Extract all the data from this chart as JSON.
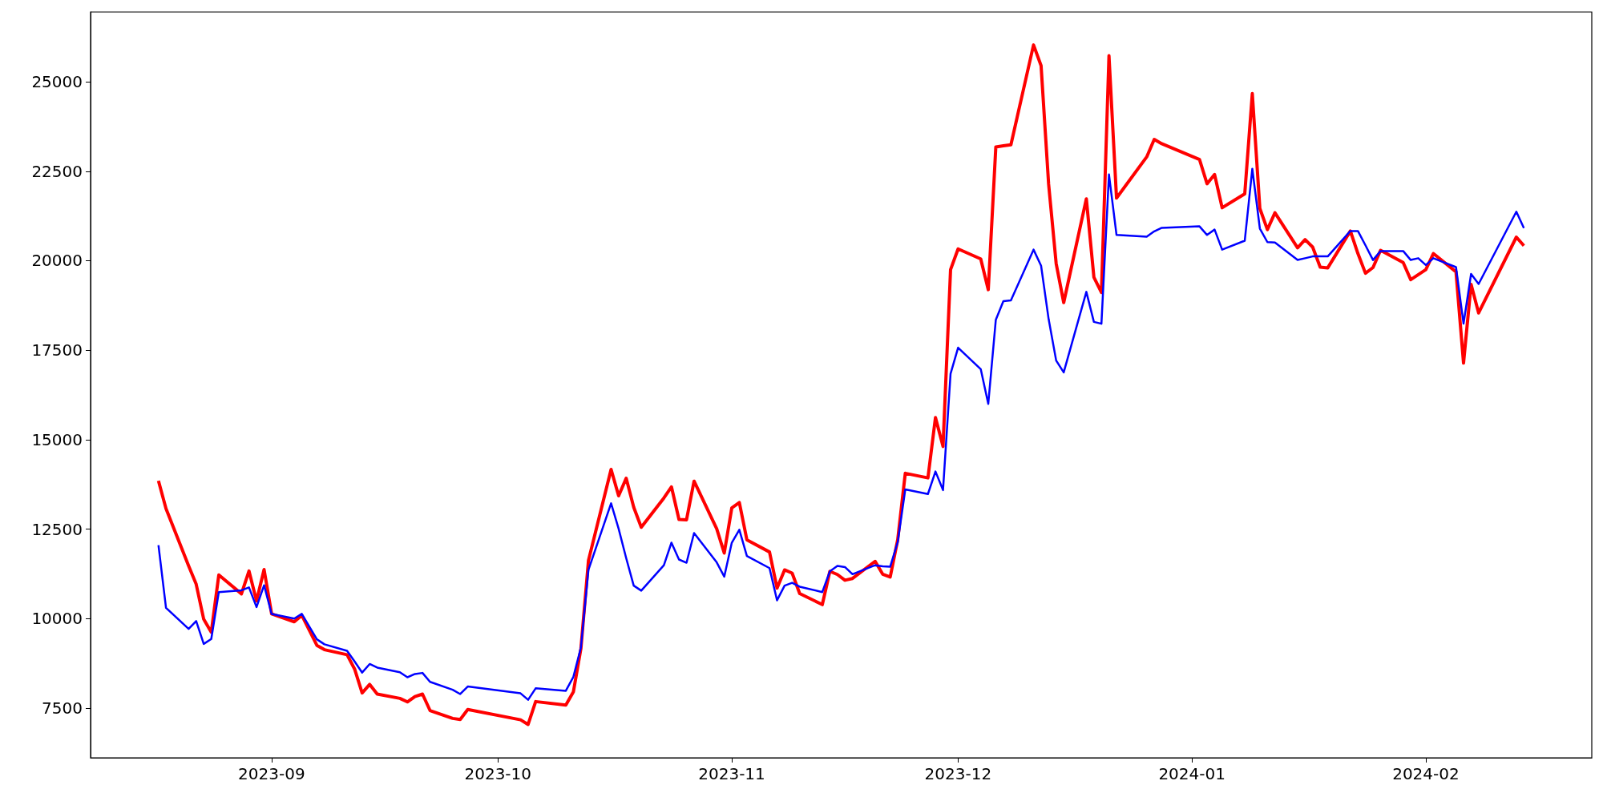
{
  "chart_data": {
    "type": "line",
    "x": [
      "2023-08-17",
      "2023-08-18",
      "2023-08-21",
      "2023-08-22",
      "2023-08-23",
      "2023-08-24",
      "2023-08-25",
      "2023-08-28",
      "2023-08-29",
      "2023-08-30",
      "2023-08-31",
      "2023-09-01",
      "2023-09-04",
      "2023-09-05",
      "2023-09-07",
      "2023-09-08",
      "2023-09-11",
      "2023-09-12",
      "2023-09-13",
      "2023-09-14",
      "2023-09-15",
      "2023-09-18",
      "2023-09-19",
      "2023-09-20",
      "2023-09-21",
      "2023-09-22",
      "2023-09-25",
      "2023-09-26",
      "2023-09-27",
      "2023-10-04",
      "2023-10-05",
      "2023-10-06",
      "2023-10-10",
      "2023-10-11",
      "2023-10-12",
      "2023-10-13",
      "2023-10-16",
      "2023-10-17",
      "2023-10-18",
      "2023-10-19",
      "2023-10-20",
      "2023-10-23",
      "2023-10-24",
      "2023-10-25",
      "2023-10-26",
      "2023-10-27",
      "2023-10-30",
      "2023-10-31",
      "2023-11-01",
      "2023-11-02",
      "2023-11-03",
      "2023-11-06",
      "2023-11-07",
      "2023-11-08",
      "2023-11-09",
      "2023-11-10",
      "2023-11-13",
      "2023-11-14",
      "2023-11-15",
      "2023-11-16",
      "2023-11-17",
      "2023-11-20",
      "2023-11-21",
      "2023-11-22",
      "2023-11-23",
      "2023-11-24",
      "2023-11-27",
      "2023-11-28",
      "2023-11-29",
      "2023-11-30",
      "2023-12-01",
      "2023-12-04",
      "2023-12-05",
      "2023-12-06",
      "2023-12-07",
      "2023-12-08",
      "2023-12-11",
      "2023-12-12",
      "2023-12-13",
      "2023-12-14",
      "2023-12-15",
      "2023-12-18",
      "2023-12-19",
      "2023-12-20",
      "2023-12-21",
      "2023-12-22",
      "2023-12-26",
      "2023-12-27",
      "2023-12-28",
      "2024-01-02",
      "2024-01-03",
      "2024-01-04",
      "2024-01-05",
      "2024-01-08",
      "2024-01-09",
      "2024-01-10",
      "2024-01-11",
      "2024-01-12",
      "2024-01-15",
      "2024-01-16",
      "2024-01-17",
      "2024-01-18",
      "2024-01-19",
      "2024-01-22",
      "2024-01-23",
      "2024-01-24",
      "2024-01-25",
      "2024-01-26",
      "2024-01-29",
      "2024-01-30",
      "2024-01-31",
      "2024-02-01",
      "2024-02-02",
      "2024-02-05",
      "2024-02-06",
      "2024-02-07",
      "2024-02-08",
      "2024-02-13",
      "2024-02-14"
    ],
    "series": [
      {
        "color": "#ff0000",
        "values": [
          13850,
          13070,
          11470,
          10960,
          9980,
          9620,
          11220,
          10690,
          11330,
          10490,
          11370,
          10130,
          9910,
          10090,
          9250,
          9130,
          8990,
          8590,
          7920,
          8160,
          7890,
          7770,
          7670,
          7820,
          7890,
          7430,
          7210,
          7180,
          7460,
          7170,
          7040,
          7680,
          7580,
          7950,
          9160,
          11620,
          14170,
          13430,
          13920,
          13110,
          12550,
          13370,
          13680,
          12770,
          12760,
          13840,
          12510,
          11830,
          13090,
          13240,
          12200,
          11860,
          10850,
          11360,
          11270,
          10700,
          10390,
          11320,
          11230,
          11070,
          11120,
          11600,
          11240,
          11160,
          12210,
          14060,
          13930,
          15620,
          14810,
          19750,
          20330,
          20050,
          19190,
          23180,
          23210,
          23240,
          26030,
          25450,
          22140,
          19920,
          18830,
          21730,
          19540,
          19110,
          25730,
          21750,
          22900,
          23390,
          23270,
          22830,
          22150,
          22410,
          21480,
          21870,
          24670,
          21460,
          20870,
          21340,
          20360,
          20590,
          20380,
          19820,
          19800,
          20830,
          20200,
          19650,
          19810,
          20290,
          19950,
          19470,
          19610,
          19750,
          20200,
          19690,
          17140,
          19340,
          18540,
          20660,
          20420
        ]
      },
      {
        "color": "#0000ff",
        "values": [
          12050,
          10300,
          9710,
          9930,
          9290,
          9430,
          10740,
          10790,
          10870,
          10320,
          10930,
          10130,
          10000,
          10130,
          9420,
          9280,
          9100,
          8800,
          8490,
          8730,
          8630,
          8500,
          8360,
          8450,
          8480,
          8230,
          8010,
          7890,
          8100,
          7910,
          7730,
          8050,
          7980,
          8370,
          9190,
          11360,
          13220,
          12510,
          11690,
          10920,
          10780,
          11490,
          12120,
          11650,
          11560,
          12390,
          11570,
          11170,
          12120,
          12480,
          11750,
          11410,
          10510,
          10920,
          11000,
          10890,
          10740,
          11320,
          11470,
          11440,
          11240,
          11490,
          11460,
          11450,
          12140,
          13610,
          13480,
          14110,
          13590,
          16840,
          17570,
          16970,
          16000,
          18350,
          18870,
          18890,
          20310,
          19860,
          18370,
          17210,
          16880,
          19130,
          18290,
          18240,
          22410,
          20720,
          20670,
          20820,
          20920,
          20960,
          20720,
          20870,
          20310,
          20560,
          22570,
          20900,
          20520,
          20510,
          20020,
          20070,
          20120,
          20120,
          20120,
          20830,
          20830,
          20430,
          20020,
          20270,
          20270,
          20020,
          20070,
          19880,
          20070,
          19820,
          18240,
          19630,
          19350,
          21370,
          20910
        ]
      }
    ],
    "xlim": [
      "2023-08-08",
      "2024-02-23"
    ],
    "xticks": [
      {
        "value": "2023-09-01",
        "label": "2023-09"
      },
      {
        "value": "2023-10-01",
        "label": "2023-10"
      },
      {
        "value": "2023-11-01",
        "label": "2023-11"
      },
      {
        "value": "2023-12-01",
        "label": "2023-12"
      },
      {
        "value": "2024-01-01",
        "label": "2024-01"
      },
      {
        "value": "2024-02-01",
        "label": "2024-02"
      }
    ],
    "ylim": [
      6110,
      26950
    ],
    "yticks": [
      7500,
      10000,
      12500,
      15000,
      17500,
      20000,
      22500,
      25000
    ]
  }
}
